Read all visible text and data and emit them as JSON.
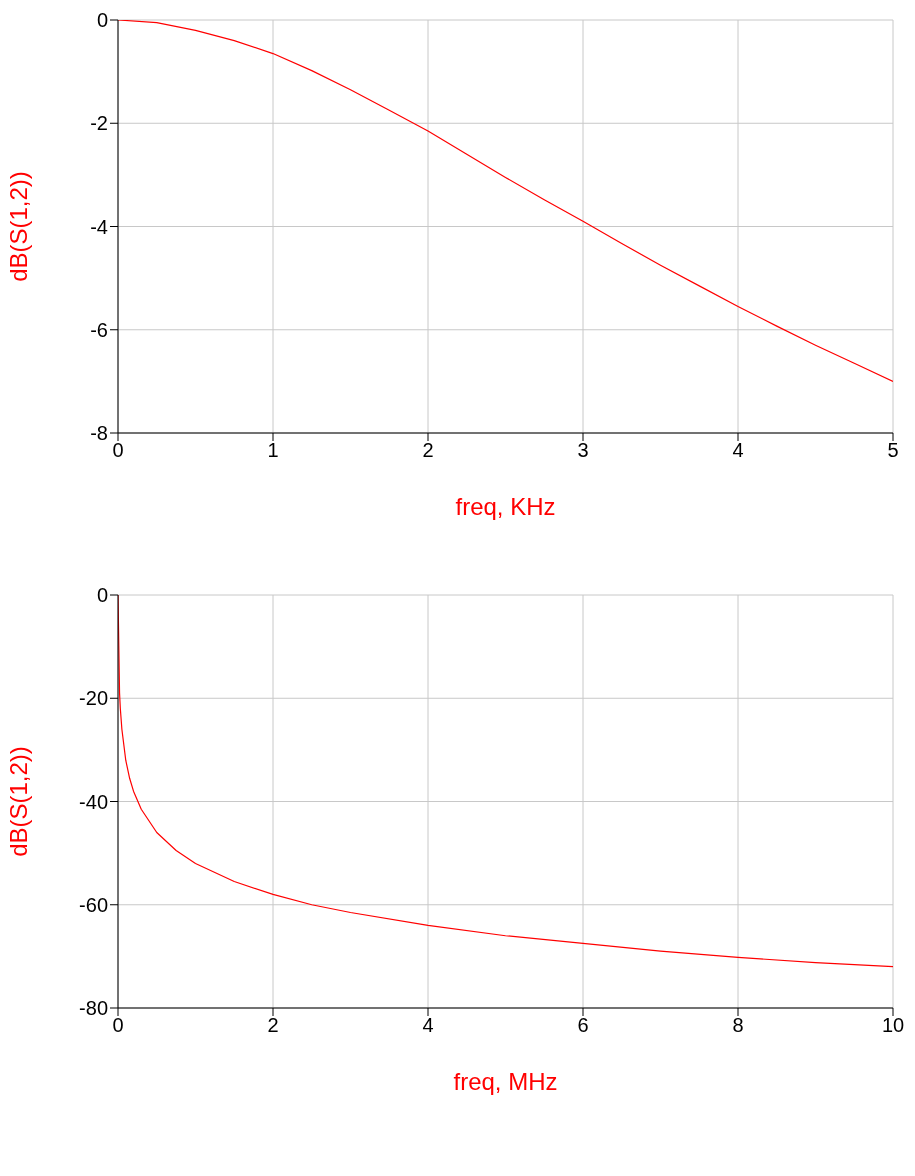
{
  "chart_data": [
    {
      "type": "line",
      "xlabel": "freq, KHz",
      "ylabel": "dB(S(1,2))",
      "color": "#ff0000",
      "marker": "none",
      "grid": true,
      "x": [
        0,
        0.25,
        0.5,
        0.75,
        1,
        1.25,
        1.5,
        1.75,
        2,
        2.25,
        2.5,
        2.75,
        3,
        3.25,
        3.5,
        3.75,
        4,
        4.25,
        4.5,
        4.75,
        5
      ],
      "values": [
        0,
        -0.05,
        -0.2,
        -0.4,
        -0.65,
        -0.98,
        -1.35,
        -1.75,
        -2.15,
        -2.6,
        -3.05,
        -3.48,
        -3.9,
        -4.33,
        -4.75,
        -5.15,
        -5.55,
        -5.93,
        -6.3,
        -6.65,
        -7.0
      ],
      "xlim": [
        0,
        5
      ],
      "xticks": [
        0,
        1,
        2,
        3,
        4,
        5
      ],
      "ylim": [
        -8,
        0
      ],
      "yticks": [
        -8,
        -6,
        -4,
        -2,
        0
      ]
    },
    {
      "type": "line",
      "xlabel": "freq, MHz",
      "ylabel": "dB(S(1,2))",
      "color": "#ff0000",
      "marker": "none",
      "grid": true,
      "x": [
        0,
        0.02,
        0.03,
        0.05,
        0.1,
        0.15,
        0.2,
        0.3,
        0.5,
        0.75,
        1,
        1.5,
        2,
        2.5,
        3,
        4,
        5,
        6,
        7,
        8,
        9,
        10
      ],
      "values": [
        0,
        -19,
        -22,
        -26,
        -32,
        -35.5,
        -38,
        -41.5,
        -46,
        -49.5,
        -52,
        -55.5,
        -58,
        -60,
        -61.5,
        -64,
        -66,
        -67.5,
        -69,
        -70.2,
        -71.2,
        -72
      ],
      "xlim": [
        0,
        10
      ],
      "xticks": [
        0,
        2,
        4,
        6,
        8,
        10
      ],
      "ylim": [
        -80,
        0
      ],
      "yticks": [
        -80,
        -60,
        -40,
        -20,
        0
      ]
    }
  ]
}
